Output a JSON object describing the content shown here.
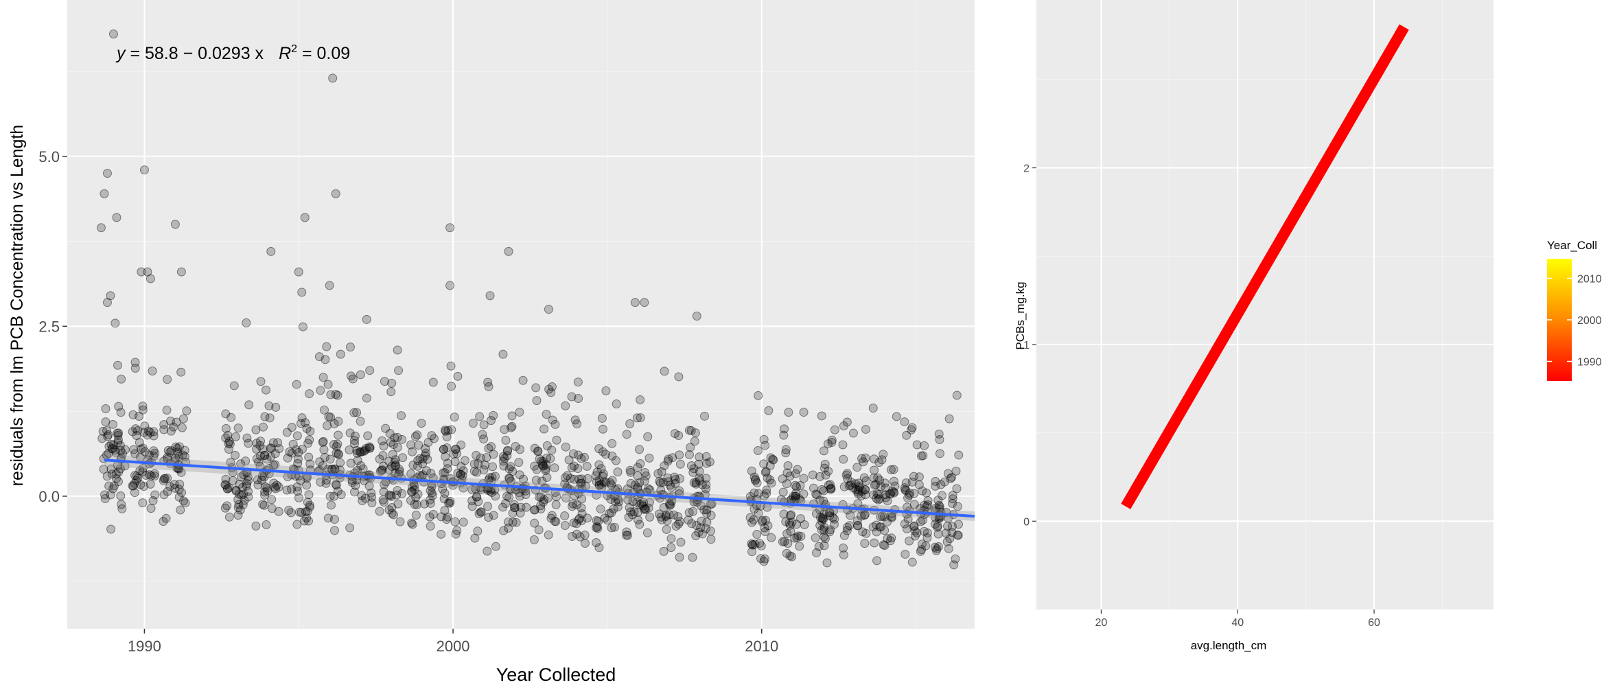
{
  "chart_data": [
    {
      "type": "scatter",
      "xlabel": "Year Collected",
      "ylabel": "residuals from lm PCB Concentration vs Length",
      "annotation": {
        "equation_prefix": "y",
        "equation_body": " = 58.8 − 0.0293 x",
        "r2_base": "R",
        "r2_sup": "2",
        "r2_value": " = 0.09"
      },
      "xlim": [
        1987.5,
        2016.9
      ],
      "ylim": [
        -1.95,
        7.3
      ],
      "x_ticks": [
        1990,
        2000,
        2010
      ],
      "x_tick_labels": [
        "1990",
        "2000",
        "2010"
      ],
      "y_ticks": [
        0,
        2.5,
        5
      ],
      "y_tick_labels": [
        "0.0",
        "2.5",
        "5.0"
      ],
      "grid": true,
      "point_color": "#000000",
      "fit_color": "#3366ff",
      "fit_line": {
        "intercept": 58.8,
        "slope": -0.0293
      },
      "outlier_points": [
        {
          "x": 1989.0,
          "y": 6.8
        },
        {
          "x": 1988.8,
          "y": 4.75
        },
        {
          "x": 1988.7,
          "y": 4.45
        },
        {
          "x": 1989.1,
          "y": 4.1
        },
        {
          "x": 1988.6,
          "y": 3.95
        },
        {
          "x": 1990.0,
          "y": 4.8
        },
        {
          "x": 1989.9,
          "y": 3.3
        },
        {
          "x": 1990.1,
          "y": 3.3
        },
        {
          "x": 1990.2,
          "y": 3.2
        },
        {
          "x": 1991.0,
          "y": 4.0
        },
        {
          "x": 1991.2,
          "y": 3.3
        },
        {
          "x": 1988.9,
          "y": 2.95
        },
        {
          "x": 1988.8,
          "y": 2.85
        },
        {
          "x": 1993.3,
          "y": 2.55
        },
        {
          "x": 1994.1,
          "y": 3.6
        },
        {
          "x": 1995.0,
          "y": 3.3
        },
        {
          "x": 1995.2,
          "y": 4.1
        },
        {
          "x": 1995.1,
          "y": 3.0
        },
        {
          "x": 1996.1,
          "y": 6.15
        },
        {
          "x": 1996.2,
          "y": 4.45
        },
        {
          "x": 1996.0,
          "y": 3.1
        },
        {
          "x": 1995.9,
          "y": 2.2
        },
        {
          "x": 1997.2,
          "y": 2.6
        },
        {
          "x": 1999.9,
          "y": 3.95
        },
        {
          "x": 1999.9,
          "y": 3.1
        },
        {
          "x": 2001.2,
          "y": 2.95
        },
        {
          "x": 2001.8,
          "y": 3.6
        },
        {
          "x": 2003.1,
          "y": 2.75
        },
        {
          "x": 2005.9,
          "y": 2.85
        },
        {
          "x": 2006.2,
          "y": 2.85
        },
        {
          "x": 2007.9,
          "y": 2.65
        },
        {
          "x": 1998.2,
          "y": 2.15
        }
      ]
    },
    {
      "type": "line",
      "xlabel": "avg.length_cm",
      "ylabel": "PCBs_mg.kg",
      "xlim": [
        10.5,
        77.5
      ],
      "ylim": [
        -0.5,
        2.95
      ],
      "x_ticks": [
        20,
        40,
        60
      ],
      "x_tick_labels": [
        "20",
        "40",
        "60"
      ],
      "y_ticks": [
        0,
        1,
        2
      ],
      "y_tick_labels": [
        "0",
        "1",
        "2"
      ],
      "grid": true,
      "series": [
        {
          "color": "#ff0000",
          "x": [
            24,
            64
          ],
          "y": [
            0.11,
            2.77
          ]
        }
      ],
      "legend": {
        "title": "Year_Coll",
        "placement": "right",
        "labels": [
          "2010",
          "2000",
          "1990"
        ],
        "gradient": [
          "#ff0000",
          "#ff8800",
          "#ffff00"
        ]
      }
    }
  ]
}
